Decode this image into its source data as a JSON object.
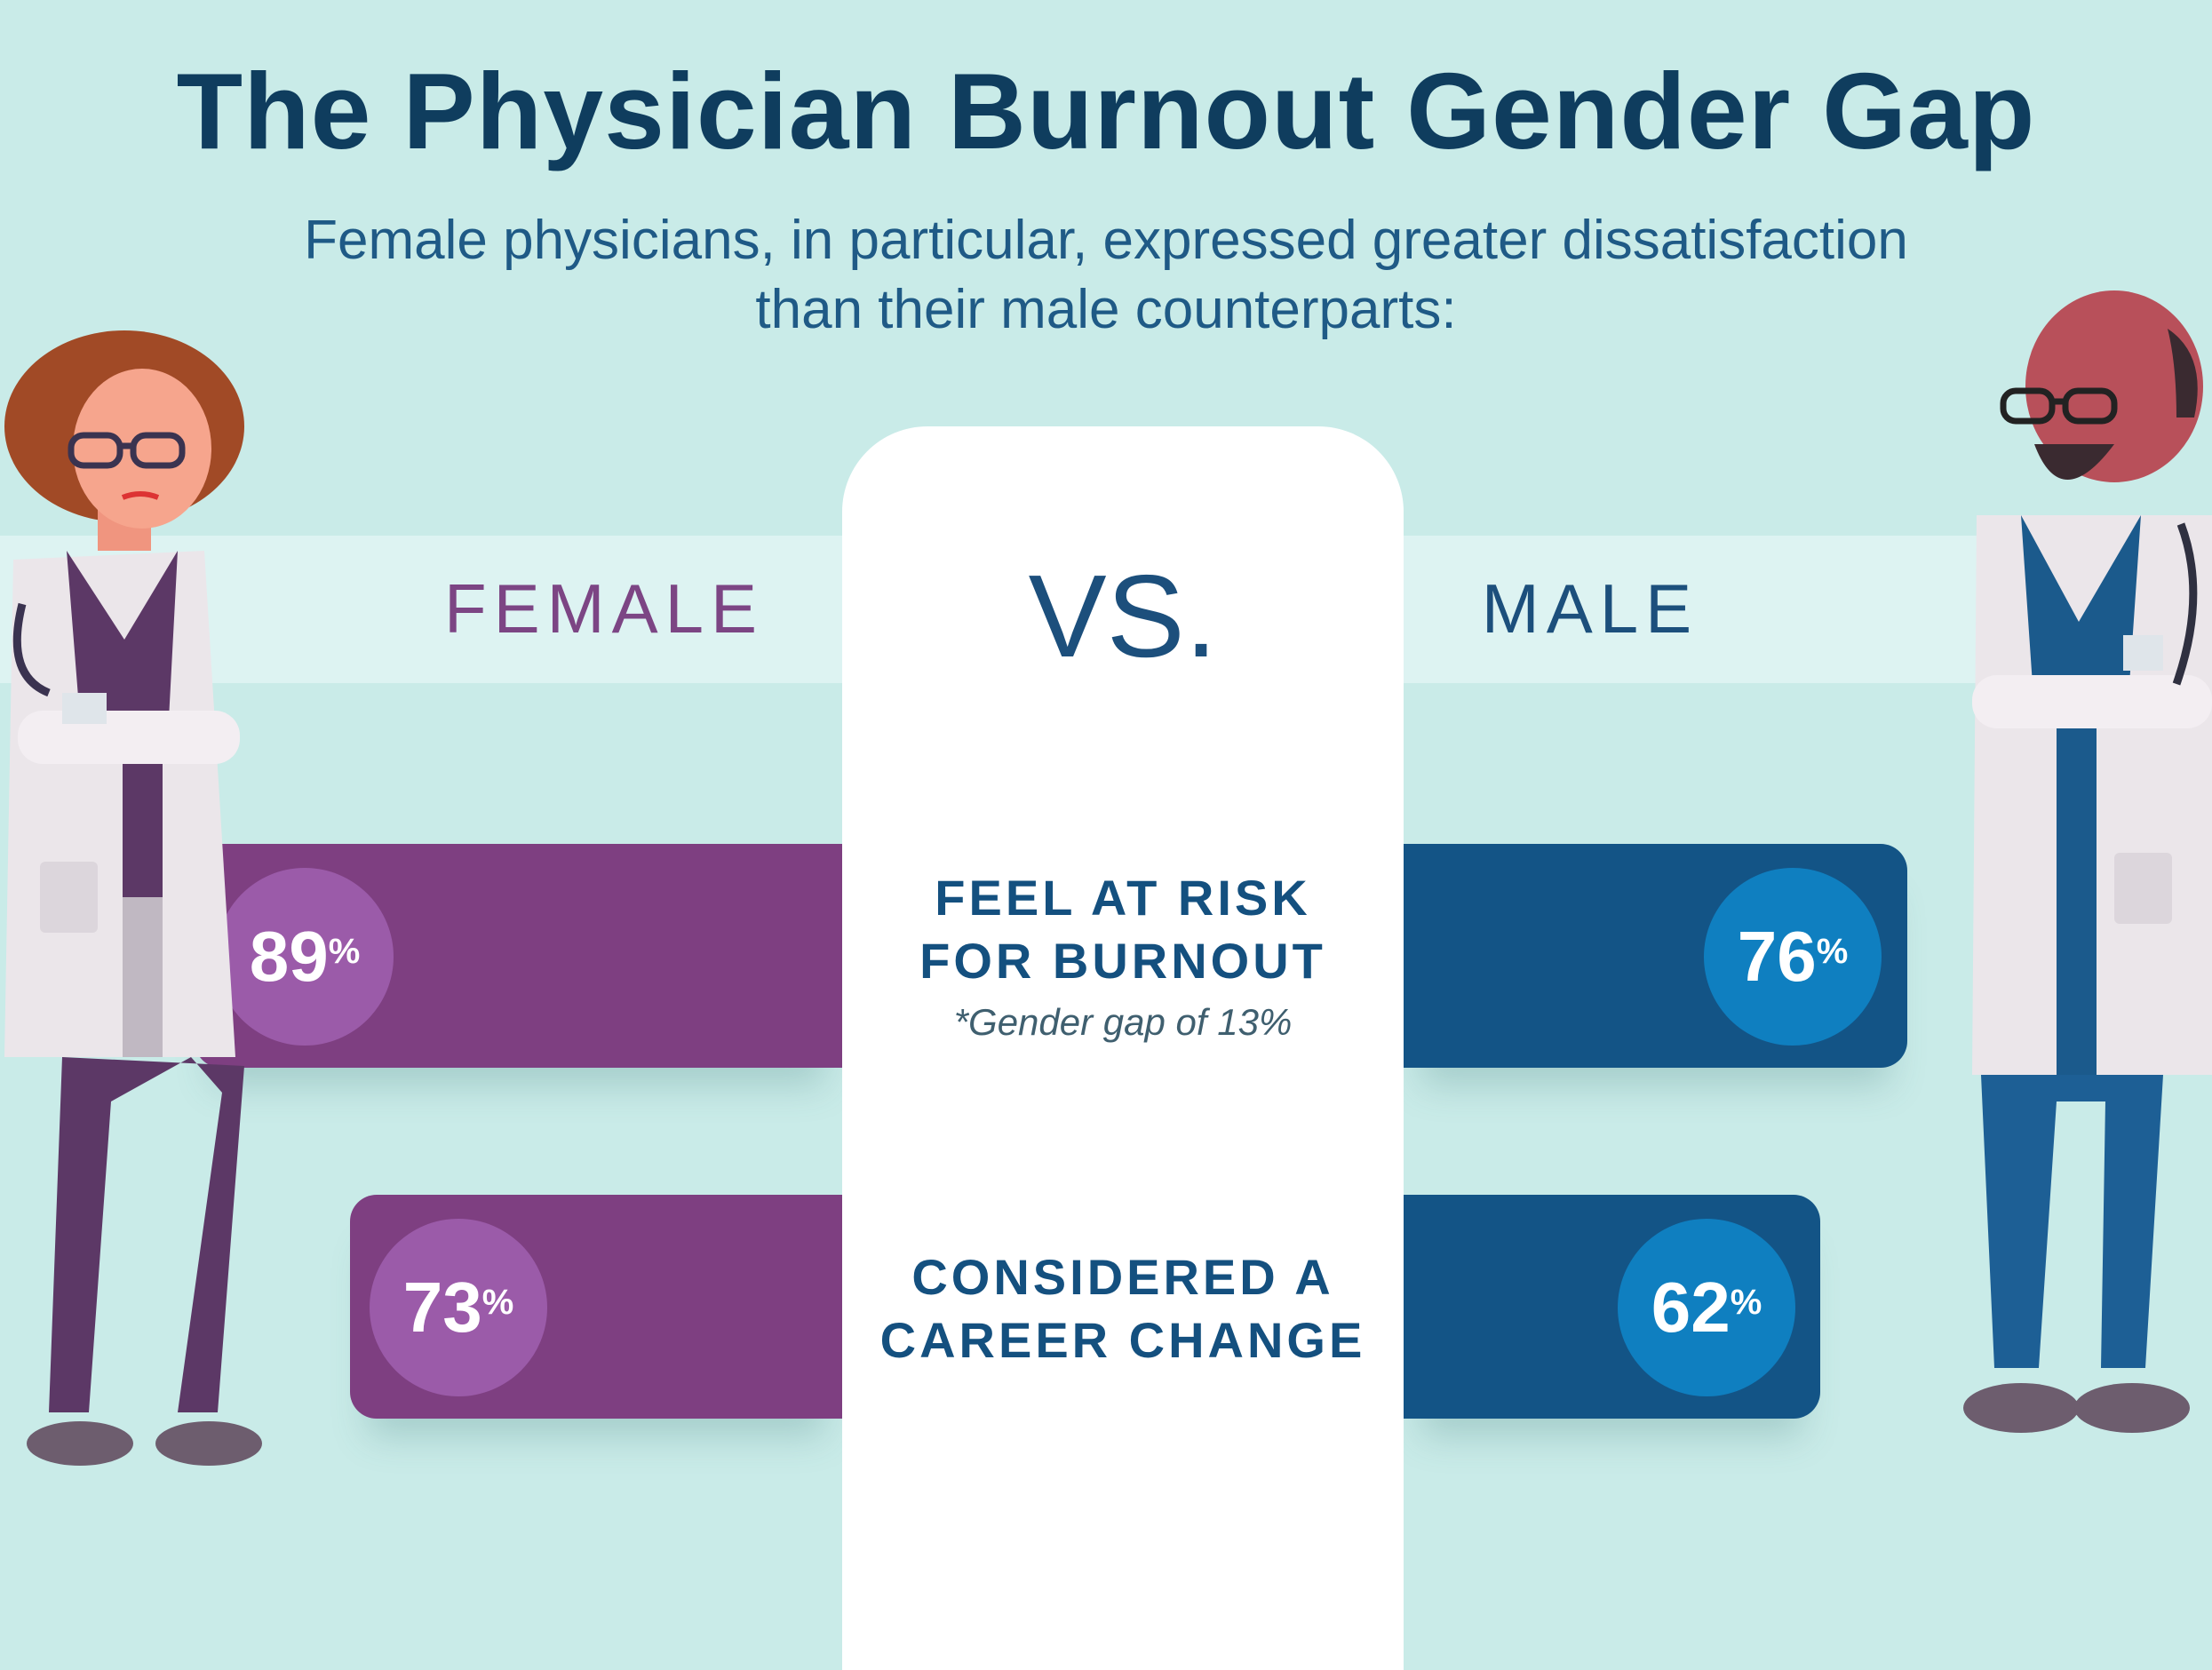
{
  "header": {
    "title": "The Physician Burnout Gender Gap",
    "subtitle_line1": "Female physicians, in particular, expressed greater dissatisfaction",
    "subtitle_line2": "than their male counterparts:"
  },
  "comparison": {
    "female_label": "FEMALE",
    "vs_label": "VS.",
    "male_label": "MALE"
  },
  "stats": [
    {
      "label_line1": "FEEL AT RISK",
      "label_line2": "FOR BURNOUT",
      "note": "*Gender gap of 13%",
      "female_value": "89",
      "male_value": "76",
      "percent_sign": "%"
    },
    {
      "label_line1": "CONSIDERED A",
      "label_line2": "CAREER CHANGE",
      "female_value": "73",
      "male_value": "62",
      "percent_sign": "%"
    }
  ],
  "colors": {
    "female": "#7e3f81",
    "female_circle": "#9b5ba9",
    "male": "#135486",
    "male_circle": "#0f7fc0",
    "title": "#0f3d5e",
    "background": "#c9ebe8"
  }
}
